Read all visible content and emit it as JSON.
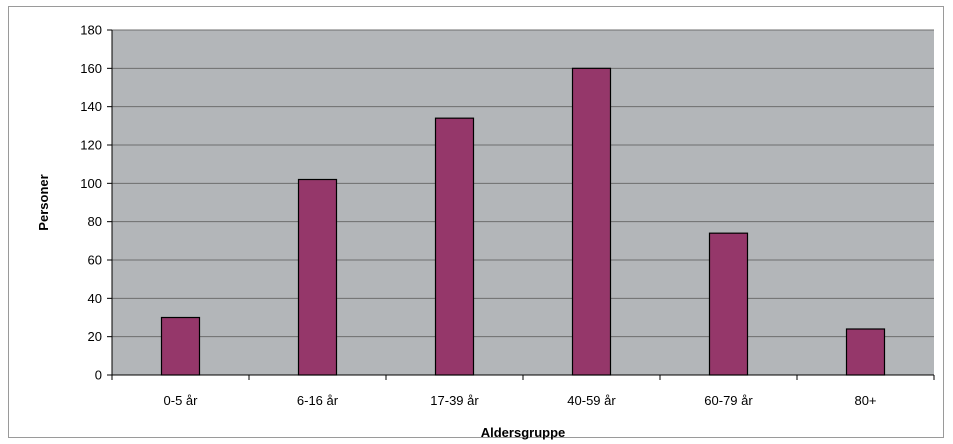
{
  "chart_data": {
    "type": "bar",
    "title": "",
    "xlabel": "Aldersgruppe",
    "ylabel": "Personer",
    "categories": [
      "0-5 år",
      "6-16 år",
      "17-39 år",
      "40-59 år",
      "60-79 år",
      "80+"
    ],
    "series": [
      {
        "values": [
          30,
          102,
          134,
          160,
          74,
          24
        ]
      }
    ],
    "ylim": [
      0,
      180
    ],
    "yticks": [
      0,
      20,
      40,
      60,
      80,
      100,
      120,
      140,
      160,
      180
    ],
    "grid": true,
    "legend": "none",
    "colors": {
      "plot_background": "#b3b6b9",
      "bar_fill": "#95376a",
      "bar_stroke": "#000000",
      "gridline": "#6e6e6e"
    }
  }
}
